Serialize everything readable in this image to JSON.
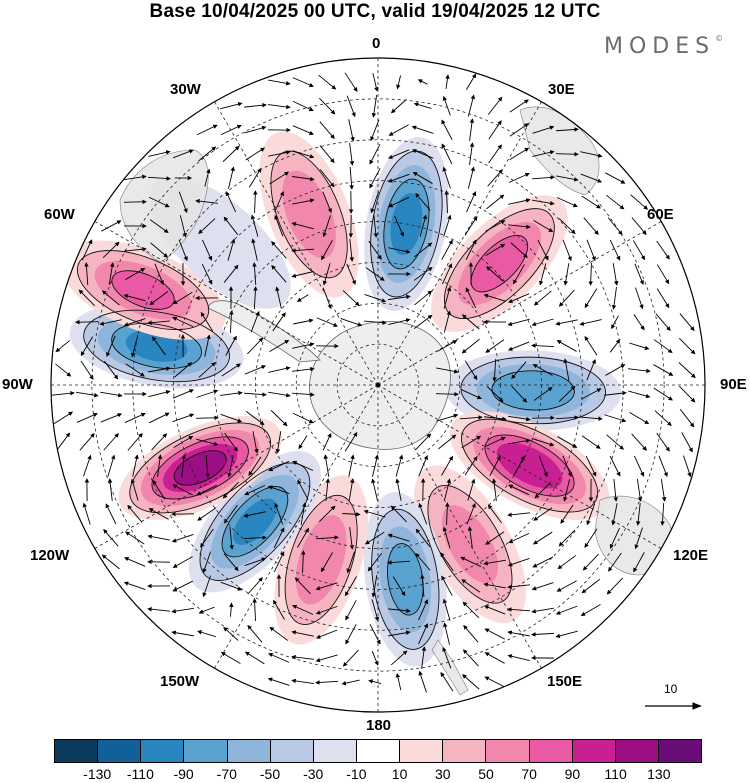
{
  "title": "Base 10/04/2025 00 UTC, valid 19/04/2025 12 UTC",
  "brand": "MODES",
  "brand_mark": "©",
  "longitude_labels": {
    "lon_0": "0",
    "lon_30e": "30E",
    "lon_60e": "60E",
    "lon_90e": "90E",
    "lon_120e": "120E",
    "lon_150e": "150E",
    "lon_180": "180",
    "lon_150w": "150W",
    "lon_120w": "120W",
    "lon_90w": "90W",
    "lon_60w": "60W",
    "lon_30w": "30W"
  },
  "vector_scale": {
    "label": "10"
  },
  "colorbar": {
    "colors": [
      "#0b3a5c",
      "#12609a",
      "#2a86c0",
      "#5aa3d0",
      "#8fb6da",
      "#b9c8e4",
      "#dedfef",
      "#ffffff",
      "#fbdada",
      "#f6b4c0",
      "#f287ad",
      "#ea5aa4",
      "#c81f92",
      "#9c0f84",
      "#6a0d78"
    ],
    "tick_labels": [
      "-130",
      "-110",
      "-90",
      "-70",
      "-50",
      "-30",
      "-10",
      "10",
      "30",
      "50",
      "70",
      "90",
      "110",
      "130"
    ]
  },
  "anomaly_centers": [
    {
      "lon": 10,
      "lat": -50,
      "value": -95
    },
    {
      "lon": 45,
      "lat": -48,
      "value": 75
    },
    {
      "lon": 92,
      "lat": -52,
      "value": -85
    },
    {
      "lon": 118,
      "lat": -48,
      "value": 105
    },
    {
      "lon": 150,
      "lat": -45,
      "value": 55
    },
    {
      "lon": 172,
      "lat": -42,
      "value": -75
    },
    {
      "lon": -162,
      "lat": -45,
      "value": 60
    },
    {
      "lon": -138,
      "lat": -45,
      "value": -90
    },
    {
      "lon": -115,
      "lat": -42,
      "value": 115
    },
    {
      "lon": -80,
      "lat": -35,
      "value": -95
    },
    {
      "lon": -68,
      "lat": -28,
      "value": 70
    },
    {
      "lon": -22,
      "lat": -45,
      "value": 60
    },
    {
      "lon": -48,
      "lat": -38,
      "value": -25
    }
  ]
}
